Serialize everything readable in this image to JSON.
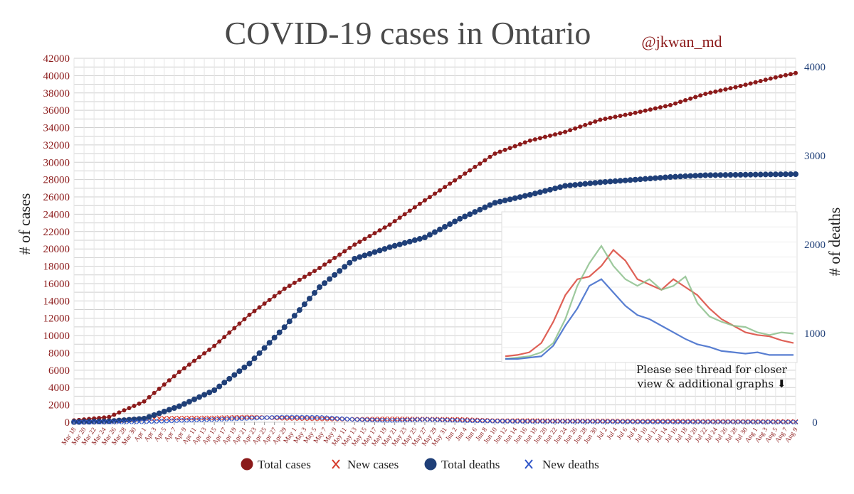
{
  "chart_data": {
    "type": "scatter",
    "title": "COVID-19 cases in Ontario",
    "handle": "@jkwan_md",
    "ylabel_left": "# of cases",
    "ylabel_right": "# of deaths",
    "ylim_left": [
      0,
      42000
    ],
    "ylim_right": [
      0,
      4000
    ],
    "yticks_left": [
      0,
      2000,
      4000,
      6000,
      8000,
      10000,
      12000,
      14000,
      16000,
      18000,
      20000,
      22000,
      24000,
      26000,
      28000,
      30000,
      32000,
      34000,
      36000,
      38000,
      40000,
      42000
    ],
    "yticks_right": [
      0,
      1000,
      2000,
      3000,
      4000
    ],
    "date_range": [
      "Mar 18",
      "Aug 9"
    ],
    "xtick_labels": [
      "Mar 18",
      "Mar 20",
      "Mar 22",
      "Mar 24",
      "Mar 26",
      "Mar 28",
      "Mar 30",
      "Apr 1",
      "Apr 3",
      "Apr 5",
      "Apr 7",
      "Apr 9",
      "Apr 11",
      "Apr 13",
      "Apr 15",
      "Apr 17",
      "Apr 19",
      "Apr 21",
      "Apr 23",
      "Apr 25",
      "Apr 27",
      "Apr 29",
      "May 1",
      "May 3",
      "May 5",
      "May 7",
      "May 9",
      "May 11",
      "May 13",
      "May 15",
      "May 17",
      "May 19",
      "May 21",
      "May 23",
      "May 25",
      "May 27",
      "May 29",
      "May 31",
      "Jun 2",
      "Jun 4",
      "Jun 6",
      "Jun 8",
      "Jun 10",
      "Jun 12",
      "Jun 14",
      "Jun 16",
      "Jun 18",
      "Jun 20",
      "Jun 22",
      "Jun 24",
      "Jun 26",
      "Jun 28",
      "Jun 30",
      "Jul 2",
      "Jul 4",
      "Jul 6",
      "Jul 8",
      "Jul 10",
      "Jul 12",
      "Jul 14",
      "Jul 16",
      "Jul 18",
      "Jul 20",
      "Jul 22",
      "Jul 24",
      "Jul 26",
      "Jul 28",
      "Jul 30",
      "Aug 1",
      "Aug 3",
      "Aug 5",
      "Aug 7",
      "Aug 9"
    ],
    "grid": true,
    "legend_position": "bottom",
    "colors": {
      "total_cases": "#8b1a1a",
      "new_cases": "#d63a2a",
      "total_deaths": "#1f3f78",
      "new_deaths": "#2f55c8",
      "tick_left": "#8b1a1a",
      "tick_right": "#1f3f78",
      "grid": "#cfcfcf"
    },
    "series": [
      {
        "name": "Total cases",
        "axis": "left",
        "marker": "circle",
        "x": [
          "Mar 18",
          "Mar 25",
          "Apr 1",
          "Apr 8",
          "Apr 15",
          "Apr 22",
          "Apr 29",
          "May 6",
          "May 13",
          "May 20",
          "May 27",
          "Jun 3",
          "Jun 10",
          "Jun 17",
          "Jun 24",
          "Jul 1",
          "Jul 8",
          "Jul 15",
          "Jul 22",
          "Jul 29",
          "Aug 5",
          "Aug 9"
        ],
        "values": [
          200,
          600,
          2400,
          5800,
          8800,
          12400,
          15400,
          17800,
          20500,
          22800,
          25600,
          28300,
          31000,
          32500,
          33500,
          34900,
          35700,
          36600,
          37900,
          38800,
          39800,
          40300
        ]
      },
      {
        "name": "New cases",
        "axis": "left",
        "marker": "x",
        "x": [
          "Mar 18",
          "Mar 25",
          "Apr 1",
          "Apr 8",
          "Apr 15",
          "Apr 22",
          "Apr 29",
          "May 6",
          "May 13",
          "May 20",
          "May 27",
          "Jun 3",
          "Jun 10",
          "Jun 17",
          "Jun 24",
          "Jul 1",
          "Jul 8",
          "Jul 15",
          "Jul 22",
          "Jul 29",
          "Aug 5",
          "Aug 9"
        ],
        "values": [
          30,
          100,
          400,
          480,
          500,
          600,
          460,
          390,
          340,
          390,
          360,
          330,
          180,
          190,
          160,
          150,
          120,
          130,
          110,
          100,
          90,
          70
        ]
      },
      {
        "name": "Total deaths",
        "axis": "right",
        "marker": "circle",
        "x": [
          "Mar 18",
          "Mar 25",
          "Apr 1",
          "Apr 8",
          "Apr 15",
          "Apr 22",
          "Apr 29",
          "May 6",
          "May 13",
          "May 20",
          "May 27",
          "Jun 3",
          "Jun 10",
          "Jun 17",
          "Jun 24",
          "Jul 1",
          "Jul 8",
          "Jul 15",
          "Jul 22",
          "Jul 29",
          "Aug 5",
          "Aug 9"
        ],
        "values": [
          2,
          10,
          40,
          180,
          360,
          660,
          1070,
          1520,
          1840,
          1970,
          2080,
          2290,
          2470,
          2560,
          2660,
          2700,
          2730,
          2760,
          2780,
          2785,
          2790,
          2792
        ]
      },
      {
        "name": "New deaths",
        "axis": "right",
        "marker": "x",
        "x": [
          "Mar 18",
          "Mar 25",
          "Apr 1",
          "Apr 8",
          "Apr 15",
          "Apr 22",
          "Apr 29",
          "May 6",
          "May 13",
          "May 20",
          "May 27",
          "Jun 3",
          "Jun 10",
          "Jun 17",
          "Jun 24",
          "Jul 1",
          "Jul 8",
          "Jul 15",
          "Jul 22",
          "Jul 29",
          "Aug 5",
          "Aug 9"
        ],
        "values": [
          0,
          2,
          5,
          20,
          30,
          45,
          58,
          55,
          30,
          20,
          30,
          20,
          12,
          8,
          8,
          6,
          4,
          3,
          2,
          2,
          1,
          1
        ]
      }
    ],
    "annotation": {
      "line1": "Please see thread for closer",
      "line2": "view & additional graphs ⬇"
    }
  }
}
